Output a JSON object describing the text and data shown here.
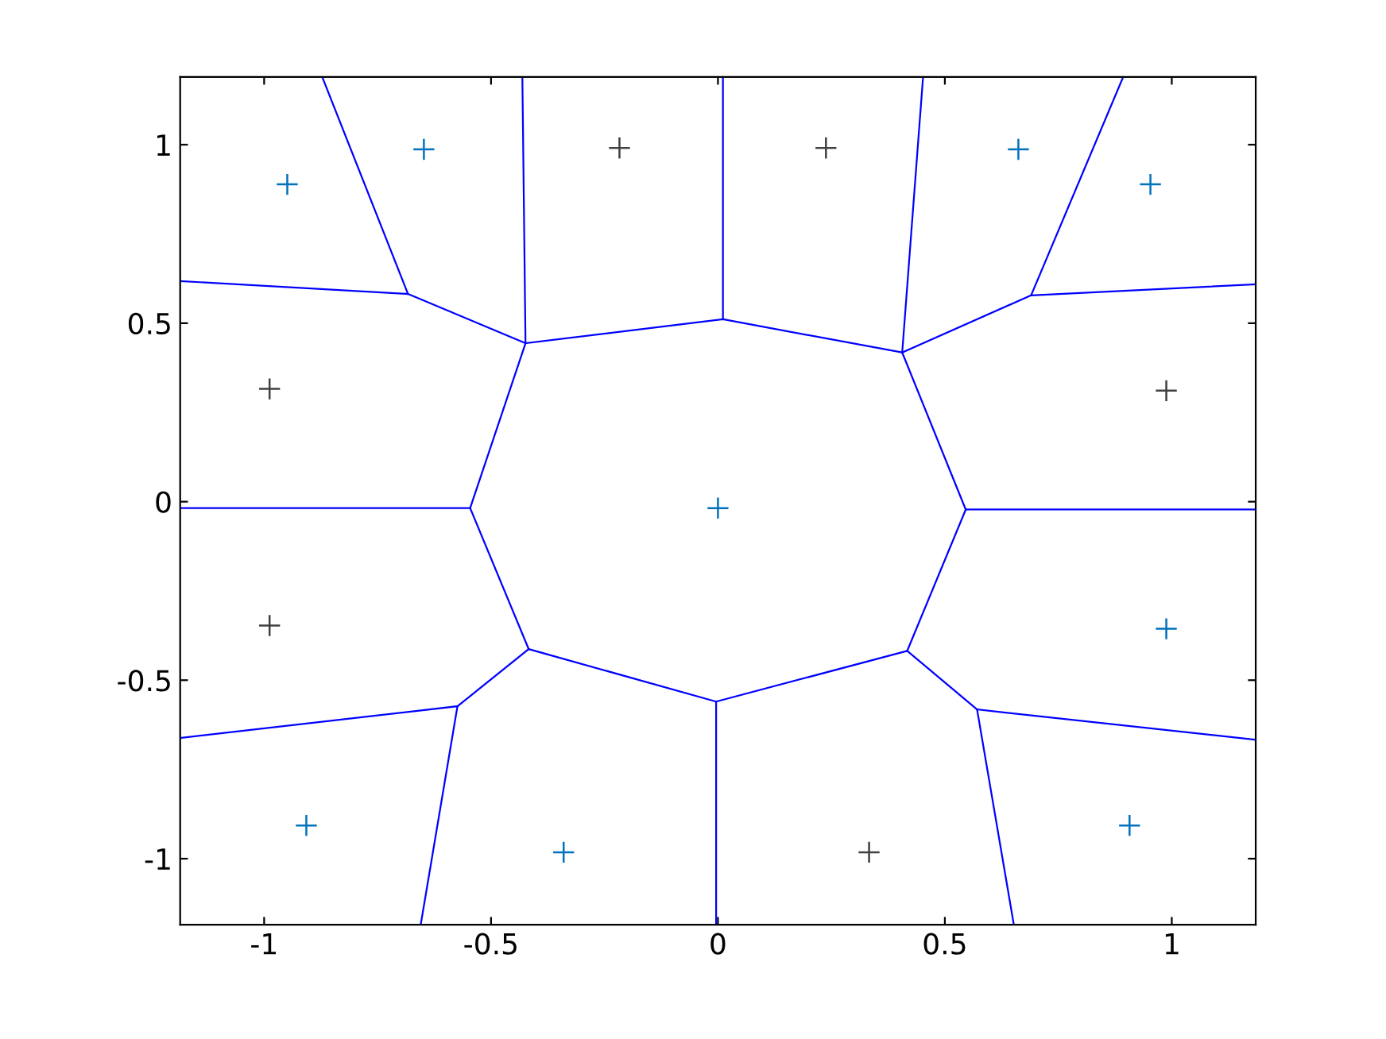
{
  "chart_data": {
    "type": "line",
    "xlim": [
      -1.185,
      1.185
    ],
    "ylim": [
      -1.185,
      1.19
    ],
    "xticks": [
      -1,
      -0.5,
      0,
      0.5,
      1
    ],
    "yticks": [
      -1,
      -0.5,
      0,
      0.5,
      1
    ],
    "grid": false,
    "line_style": "solid",
    "series": [
      {
        "type": "scatter",
        "marker": "cross",
        "color": "#0072bd",
        "x": [
          -0.949,
          -0.648,
          0.662,
          0.953,
          0,
          0.988,
          -0.907,
          -0.34,
          0.907
        ],
        "values": [
          0.889,
          0.987,
          0.987,
          0.889,
          -0.018,
          -0.356,
          -0.907,
          -0.982,
          -0.907
        ]
      },
      {
        "type": "scatter",
        "marker": "cross",
        "color": "#404040",
        "x": [
          -0.217,
          0.238,
          -0.988,
          0.988,
          -0.988,
          0.333
        ],
        "values": [
          0.991,
          0.991,
          0.316,
          0.311,
          -0.347,
          -0.982
        ]
      },
      {
        "color": "#0000ff",
        "x": [
          -0.872,
          -0.683
        ],
        "values": [
          1.19,
          0.582
        ]
      },
      {
        "color": "#0000ff",
        "x": [
          -1.185,
          -0.683,
          -0.424
        ],
        "values": [
          0.618,
          0.582,
          0.444
        ]
      },
      {
        "color": "#0000ff",
        "x": [
          -0.431,
          -0.424,
          -0.546
        ],
        "values": [
          1.19,
          0.444,
          -0.018
        ]
      },
      {
        "color": "#0000ff",
        "x": [
          -0.424,
          0.011,
          0.406
        ],
        "values": [
          0.444,
          0.511,
          0.418
        ]
      },
      {
        "color": "#0000ff",
        "x": [
          0.011,
          0.011
        ],
        "values": [
          0.511,
          1.19
        ]
      },
      {
        "color": "#0000ff",
        "x": [
          0.452,
          0.406,
          0.546
        ],
        "values": [
          1.19,
          0.418,
          -0.022
        ]
      },
      {
        "color": "#0000ff",
        "x": [
          0.406,
          0.69,
          1.185
        ],
        "values": [
          0.418,
          0.578,
          0.609
        ]
      },
      {
        "color": "#0000ff",
        "x": [
          0.69,
          0.893
        ],
        "values": [
          0.578,
          1.19
        ]
      },
      {
        "color": "#0000ff",
        "x": [
          -1.185,
          -0.546
        ],
        "values": [
          -0.018,
          -0.018
        ]
      },
      {
        "color": "#0000ff",
        "x": [
          0.546,
          1.185
        ],
        "values": [
          -0.022,
          -0.022
        ]
      },
      {
        "color": "#0000ff",
        "x": [
          -0.546,
          -0.417
        ],
        "values": [
          -0.018,
          -0.413
        ]
      },
      {
        "color": "#0000ff",
        "x": [
          0.546,
          0.417
        ],
        "values": [
          -0.022,
          -0.418
        ]
      },
      {
        "color": "#0000ff",
        "x": [
          -0.417,
          -0.004,
          0.417
        ],
        "values": [
          -0.413,
          -0.56,
          -0.418
        ]
      },
      {
        "color": "#0000ff",
        "x": [
          -0.417,
          -0.574
        ],
        "values": [
          -0.413,
          -0.573
        ]
      },
      {
        "color": "#0000ff",
        "x": [
          -0.574,
          -1.185
        ],
        "values": [
          -0.573,
          -0.662
        ]
      },
      {
        "color": "#0000ff",
        "x": [
          -0.574,
          -0.655
        ],
        "values": [
          -0.573,
          -1.185
        ]
      },
      {
        "color": "#0000ff",
        "x": [
          -0.004,
          -0.004
        ],
        "values": [
          -0.56,
          -1.185
        ]
      },
      {
        "color": "#0000ff",
        "x": [
          0.417,
          0.571
        ],
        "values": [
          -0.418,
          -0.582
        ]
      },
      {
        "color": "#0000ff",
        "x": [
          0.571,
          1.185
        ],
        "values": [
          -0.582,
          -0.667
        ]
      },
      {
        "color": "#0000ff",
        "x": [
          0.571,
          0.652
        ],
        "values": [
          -0.582,
          -1.185
        ]
      }
    ]
  }
}
